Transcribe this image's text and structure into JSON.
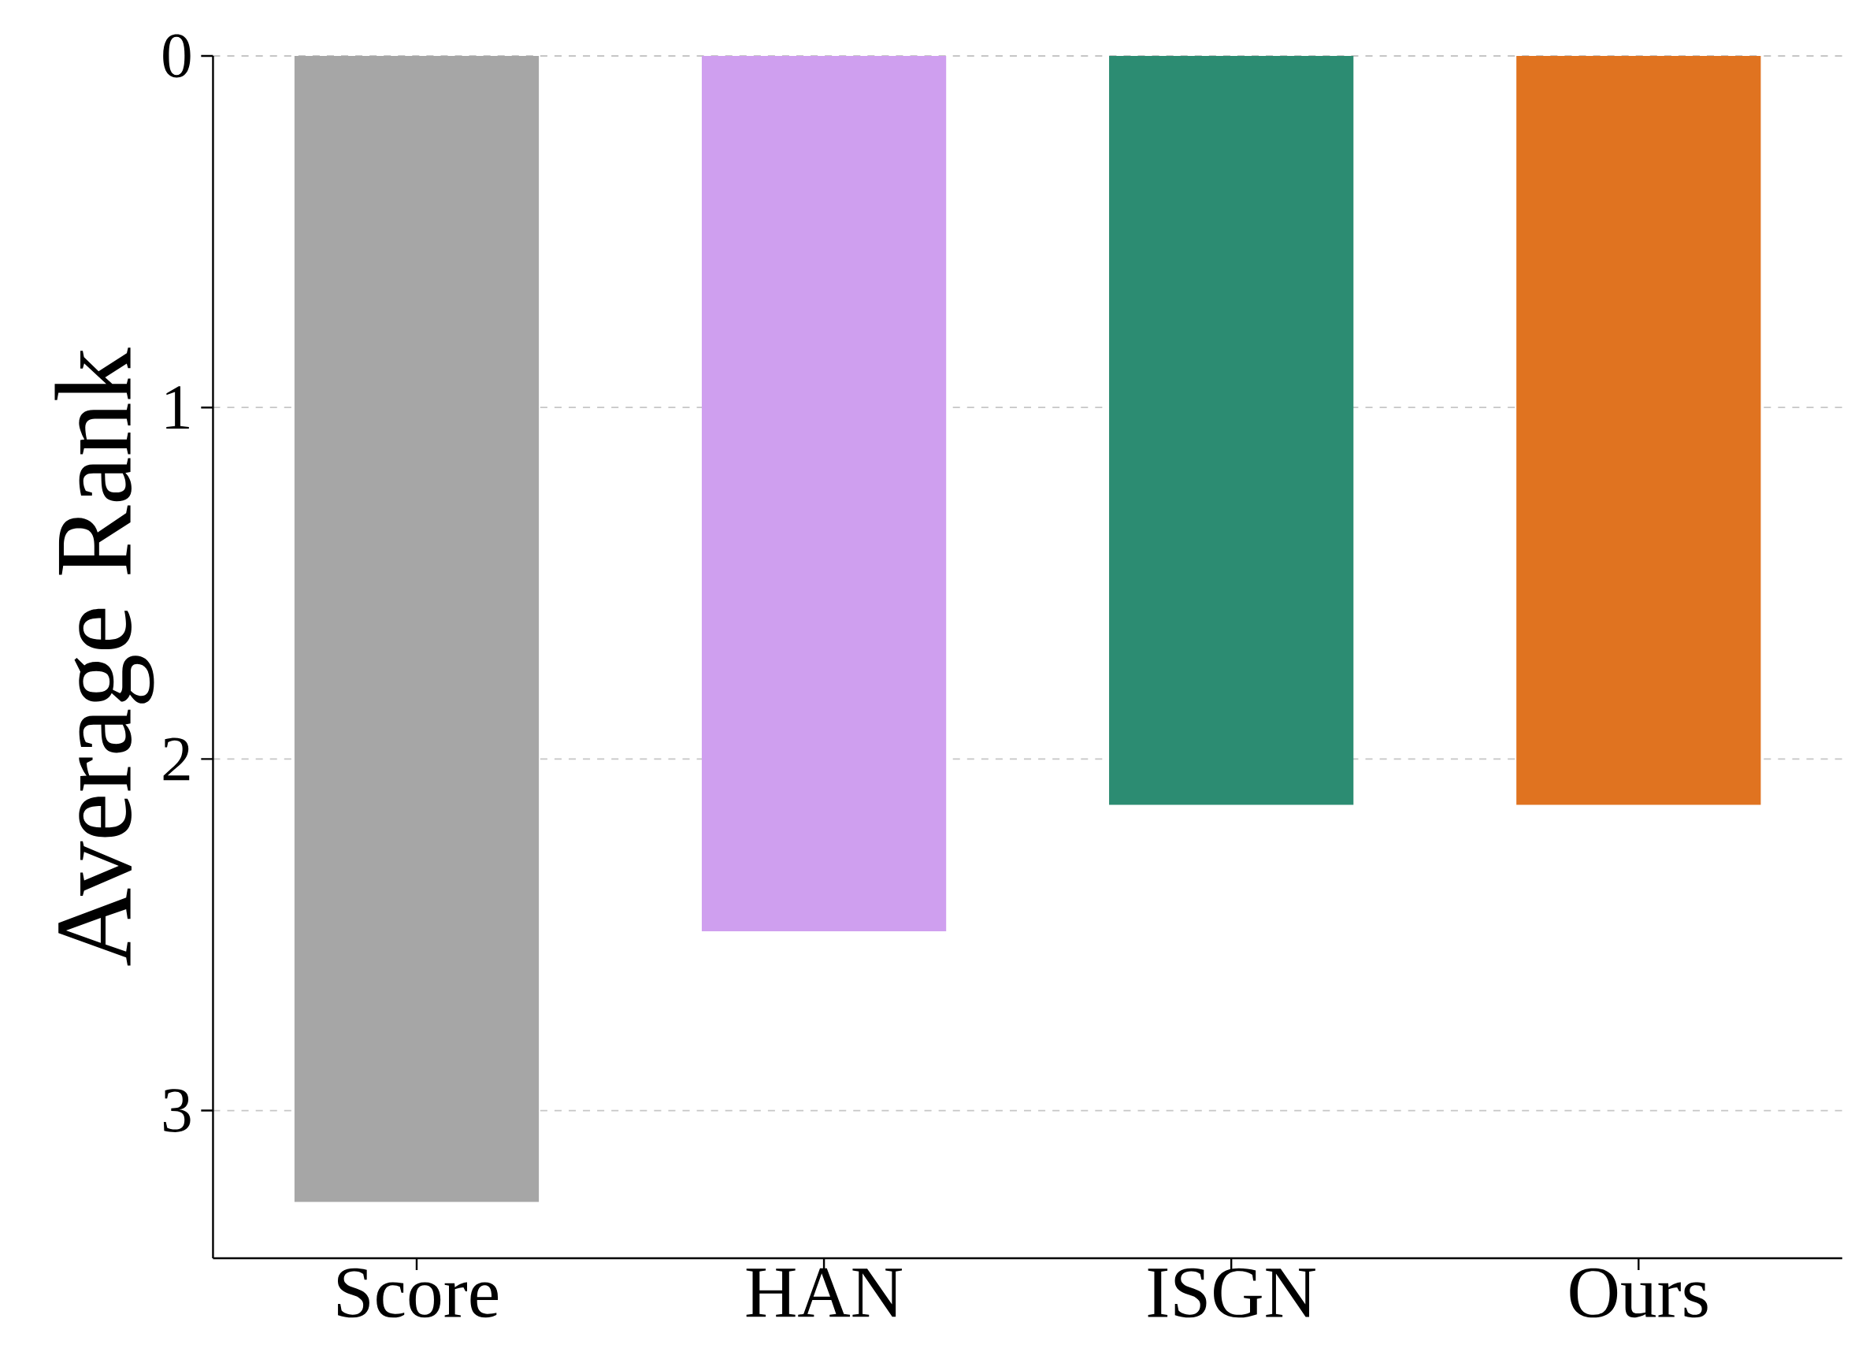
{
  "chart_data": {
    "type": "bar",
    "ylabel": "Average Rank",
    "categories": [
      "Score",
      "HAN",
      "ISGN",
      "Ours"
    ],
    "values": [
      3.26,
      2.49,
      2.13,
      2.13
    ],
    "colors": [
      "#a6a6a6",
      "#cf9fef",
      "#2c8c72",
      "#e07320"
    ],
    "ylim": [
      3.42,
      0
    ],
    "yticks": [
      0,
      1,
      2,
      3
    ],
    "grid": "y"
  }
}
